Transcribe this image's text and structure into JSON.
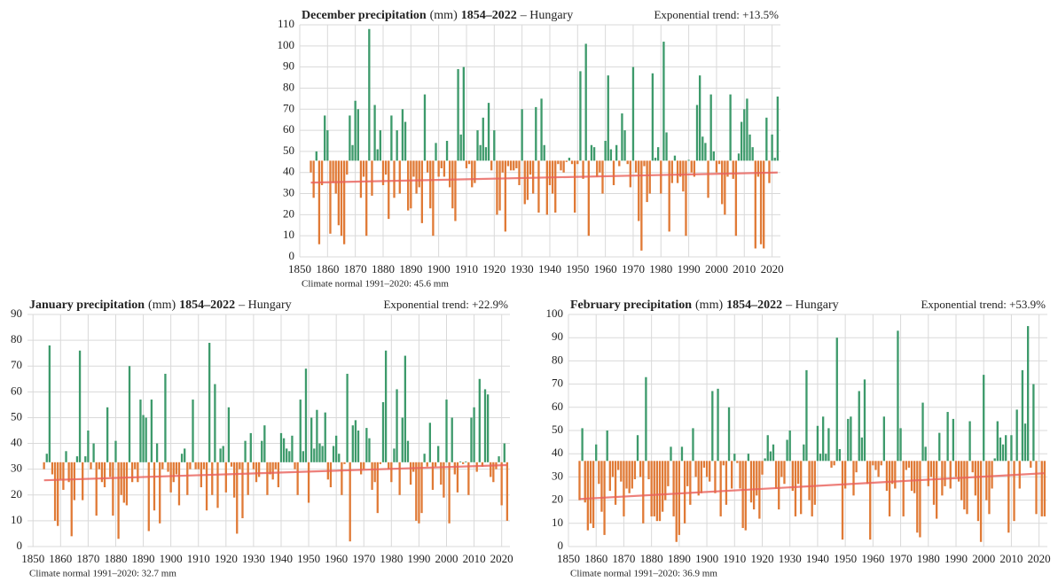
{
  "chart_data": [
    {
      "type": "bar",
      "title": [
        "December precipitation",
        "(mm)",
        "1854–2022",
        "– Hungary"
      ],
      "trend_label": "Exponential trend: +13.5%",
      "baseline": 45.6,
      "baseline_label": "Climate normal 1991–2020: 45.6 mm",
      "color_above": "#3d9a6b",
      "color_below": "#e07a36",
      "trend": {
        "x": [
          1854,
          2022
        ],
        "values": [
          35.2,
          40
        ],
        "color": "#e8605a"
      },
      "xlim": [
        1850,
        2023
      ],
      "ylim": [
        0,
        110
      ],
      "xticks": [
        1850,
        1860,
        1870,
        1880,
        1890,
        1900,
        1910,
        1920,
        1930,
        1940,
        1950,
        1960,
        1970,
        1980,
        1990,
        2000,
        2010,
        2020
      ],
      "yticks": [
        0,
        10,
        20,
        30,
        40,
        50,
        60,
        70,
        80,
        90,
        100,
        110
      ],
      "grid": true,
      "x": [
        1854,
        1855,
        1856,
        1857,
        1858,
        1859,
        1860,
        1861,
        1862,
        1863,
        1864,
        1865,
        1866,
        1867,
        1868,
        1869,
        1870,
        1871,
        1872,
        1873,
        1874,
        1875,
        1876,
        1877,
        1878,
        1879,
        1880,
        1881,
        1882,
        1883,
        1884,
        1885,
        1886,
        1887,
        1888,
        1889,
        1890,
        1891,
        1892,
        1893,
        1894,
        1895,
        1896,
        1897,
        1898,
        1899,
        1900,
        1901,
        1902,
        1903,
        1904,
        1905,
        1906,
        1907,
        1908,
        1909,
        1910,
        1911,
        1912,
        1913,
        1914,
        1915,
        1916,
        1917,
        1918,
        1919,
        1920,
        1921,
        1922,
        1923,
        1924,
        1925,
        1926,
        1927,
        1928,
        1929,
        1930,
        1931,
        1932,
        1933,
        1934,
        1935,
        1936,
        1937,
        1938,
        1939,
        1940,
        1941,
        1942,
        1943,
        1944,
        1945,
        1946,
        1947,
        1948,
        1949,
        1950,
        1951,
        1952,
        1953,
        1954,
        1955,
        1956,
        1957,
        1958,
        1959,
        1960,
        1961,
        1962,
        1963,
        1964,
        1965,
        1966,
        1967,
        1968,
        1969,
        1970,
        1971,
        1972,
        1973,
        1974,
        1975,
        1976,
        1977,
        1978,
        1979,
        1980,
        1981,
        1982,
        1983,
        1984,
        1985,
        1986,
        1987,
        1988,
        1989,
        1990,
        1991,
        1992,
        1993,
        1994,
        1995,
        1996,
        1997,
        1998,
        1999,
        2000,
        2001,
        2002,
        2003,
        2004,
        2005,
        2006,
        2007,
        2008,
        2009,
        2010,
        2011,
        2012,
        2013,
        2014,
        2015,
        2016,
        2017,
        2018,
        2019,
        2020,
        2021,
        2022
      ],
      "values": [
        40,
        28,
        50,
        6,
        34,
        67,
        60,
        11,
        35,
        30,
        15,
        10,
        6,
        39,
        67,
        53,
        74,
        70,
        28,
        38,
        10,
        108,
        29,
        72,
        51,
        60,
        34,
        39,
        18,
        67,
        28,
        60,
        30,
        70,
        64,
        22,
        23,
        38,
        30,
        33,
        16,
        77,
        40,
        23,
        10,
        54,
        38,
        42,
        38,
        55,
        33,
        23,
        17,
        89,
        58,
        90,
        42,
        44,
        33,
        35,
        60,
        53,
        66,
        52,
        73,
        41,
        60,
        20,
        22,
        40,
        12,
        43,
        41,
        41,
        42,
        34,
        70,
        25,
        27,
        39,
        30,
        71,
        21,
        75,
        53,
        20,
        34,
        30,
        21,
        44,
        41,
        40,
        45,
        47,
        44,
        21,
        44,
        88,
        37,
        101,
        10,
        53,
        52,
        38,
        40,
        30,
        55,
        86,
        51,
        34,
        53,
        43,
        68,
        60,
        44,
        33,
        90,
        40,
        17,
        3,
        43,
        26,
        30,
        87,
        47,
        52,
        30,
        102,
        59,
        12,
        35,
        48,
        35,
        38,
        31,
        10,
        46,
        40,
        38,
        72,
        86,
        57,
        54,
        28,
        77,
        50,
        40,
        44,
        25,
        20,
        38,
        77,
        37,
        10,
        49,
        64,
        70,
        75,
        58,
        52,
        4,
        38,
        6,
        4,
        66,
        35,
        58,
        47,
        76
      ]
    },
    {
      "type": "bar",
      "title": [
        "January precipitation",
        "(mm)",
        "1854–2022",
        "– Hungary"
      ],
      "trend_label": "Exponential trend: +22.9%",
      "baseline": 32.7,
      "baseline_label": "Climate normal 1991–2020: 32.7 mm",
      "color_above": "#3d9a6b",
      "color_below": "#e07a36",
      "trend": {
        "x": [
          1854,
          2022
        ],
        "values": [
          25.7,
          31.6
        ],
        "color": "#e8605a"
      },
      "xlim": [
        1848,
        2023
      ],
      "ylim": [
        0,
        90
      ],
      "xticks": [
        1850,
        1860,
        1870,
        1880,
        1890,
        1900,
        1910,
        1920,
        1930,
        1940,
        1950,
        1960,
        1970,
        1980,
        1990,
        2000,
        2010,
        2020
      ],
      "yticks": [
        0,
        10,
        20,
        30,
        40,
        50,
        60,
        70,
        80,
        90
      ],
      "grid": true,
      "x": [
        1854,
        1855,
        1856,
        1857,
        1858,
        1859,
        1860,
        1861,
        1862,
        1863,
        1864,
        1865,
        1866,
        1867,
        1868,
        1869,
        1870,
        1871,
        1872,
        1873,
        1874,
        1875,
        1876,
        1877,
        1878,
        1879,
        1880,
        1881,
        1882,
        1883,
        1884,
        1885,
        1886,
        1887,
        1888,
        1889,
        1890,
        1891,
        1892,
        1893,
        1894,
        1895,
        1896,
        1897,
        1898,
        1899,
        1900,
        1901,
        1902,
        1903,
        1904,
        1905,
        1906,
        1907,
        1908,
        1909,
        1910,
        1911,
        1912,
        1913,
        1914,
        1915,
        1916,
        1917,
        1918,
        1919,
        1920,
        1921,
        1922,
        1923,
        1924,
        1925,
        1926,
        1927,
        1928,
        1929,
        1930,
        1931,
        1932,
        1933,
        1934,
        1935,
        1936,
        1937,
        1938,
        1939,
        1940,
        1941,
        1942,
        1943,
        1944,
        1945,
        1946,
        1947,
        1948,
        1949,
        1950,
        1951,
        1952,
        1953,
        1954,
        1955,
        1956,
        1957,
        1958,
        1959,
        1960,
        1961,
        1962,
        1963,
        1964,
        1965,
        1966,
        1967,
        1968,
        1969,
        1970,
        1971,
        1972,
        1973,
        1974,
        1975,
        1976,
        1977,
        1978,
        1979,
        1980,
        1981,
        1982,
        1983,
        1984,
        1985,
        1986,
        1987,
        1988,
        1989,
        1990,
        1991,
        1992,
        1993,
        1994,
        1995,
        1996,
        1997,
        1998,
        1999,
        2000,
        2001,
        2002,
        2003,
        2004,
        2005,
        2006,
        2007,
        2008,
        2009,
        2010,
        2011,
        2012,
        2013,
        2014,
        2015,
        2016,
        2017,
        2018,
        2019,
        2020,
        2021,
        2022
      ],
      "values": [
        30,
        36,
        78,
        28,
        10,
        8,
        26,
        22,
        37,
        25,
        4,
        18,
        35,
        76,
        18,
        35,
        45,
        30,
        40,
        12,
        30,
        25,
        23,
        54,
        27,
        12,
        41,
        3,
        20,
        17,
        16,
        70,
        25,
        30,
        25,
        57,
        51,
        50,
        6,
        57,
        14,
        40,
        9,
        30,
        67,
        29,
        21,
        25,
        28,
        16,
        36,
        38,
        20,
        30,
        57,
        30,
        30,
        23,
        30,
        14,
        79,
        20,
        63,
        15,
        38,
        39,
        21,
        54,
        31,
        19,
        5,
        30,
        11,
        41,
        20,
        44,
        30,
        25,
        27,
        41,
        47,
        20,
        28,
        26,
        30,
        23,
        44,
        42,
        38,
        37,
        43,
        30,
        20,
        57,
        37,
        69,
        17,
        50,
        38,
        53,
        40,
        39,
        52,
        26,
        23,
        39,
        43,
        36,
        20,
        32,
        67,
        2,
        47,
        49,
        45,
        28,
        30,
        46,
        42,
        22,
        25,
        13,
        32,
        56,
        76,
        30,
        25,
        38,
        61,
        20,
        50,
        74,
        41,
        24,
        29,
        10,
        9,
        13,
        36,
        31,
        48,
        22,
        31,
        39,
        24,
        19,
        57,
        9,
        50,
        28,
        21,
        33,
        32,
        33,
        20,
        50,
        54,
        29,
        65,
        31,
        61,
        59,
        27,
        25,
        30,
        35,
        16,
        40,
        10
      ]
    },
    {
      "type": "bar",
      "title": [
        "February precipitation",
        "(mm)",
        "1854–2022",
        "– Hungary"
      ],
      "trend_label": "Exponential trend: +53.9%",
      "baseline": 36.9,
      "baseline_label": "Climate normal 1991–2020: 36.9 mm",
      "color_above": "#3d9a6b",
      "color_below": "#e07a36",
      "trend": {
        "x": [
          1854,
          2022
        ],
        "values": [
          20.5,
          31.6
        ],
        "color": "#e8605a"
      },
      "xlim": [
        1850,
        2023
      ],
      "ylim": [
        0,
        100
      ],
      "xticks": [
        1850,
        1860,
        1870,
        1880,
        1890,
        1900,
        1910,
        1920,
        1930,
        1940,
        1950,
        1960,
        1970,
        1980,
        1990,
        2000,
        2010,
        2020
      ],
      "yticks": [
        0,
        10,
        20,
        30,
        40,
        50,
        60,
        70,
        80,
        90,
        100
      ],
      "grid": true,
      "x": [
        1854,
        1855,
        1856,
        1857,
        1858,
        1859,
        1860,
        1861,
        1862,
        1863,
        1864,
        1865,
        1866,
        1867,
        1868,
        1869,
        1870,
        1871,
        1872,
        1873,
        1874,
        1875,
        1876,
        1877,
        1878,
        1879,
        1880,
        1881,
        1882,
        1883,
        1884,
        1885,
        1886,
        1887,
        1888,
        1889,
        1890,
        1891,
        1892,
        1893,
        1894,
        1895,
        1896,
        1897,
        1898,
        1899,
        1900,
        1901,
        1902,
        1903,
        1904,
        1905,
        1906,
        1907,
        1908,
        1909,
        1910,
        1911,
        1912,
        1913,
        1914,
        1915,
        1916,
        1917,
        1918,
        1919,
        1920,
        1921,
        1922,
        1923,
        1924,
        1925,
        1926,
        1927,
        1928,
        1929,
        1930,
        1931,
        1932,
        1933,
        1934,
        1935,
        1936,
        1937,
        1938,
        1939,
        1940,
        1941,
        1942,
        1943,
        1944,
        1945,
        1946,
        1947,
        1948,
        1949,
        1950,
        1951,
        1952,
        1953,
        1954,
        1955,
        1956,
        1957,
        1958,
        1959,
        1960,
        1961,
        1962,
        1963,
        1964,
        1965,
        1966,
        1967,
        1968,
        1969,
        1970,
        1971,
        1972,
        1973,
        1974,
        1975,
        1976,
        1977,
        1978,
        1979,
        1980,
        1981,
        1982,
        1983,
        1984,
        1985,
        1986,
        1987,
        1988,
        1989,
        1990,
        1991,
        1992,
        1993,
        1994,
        1995,
        1996,
        1997,
        1998,
        1999,
        2000,
        2001,
        2002,
        2003,
        2004,
        2005,
        2006,
        2007,
        2008,
        2009,
        2010,
        2011,
        2012,
        2013,
        2014,
        2015,
        2016,
        2017,
        2018,
        2019,
        2020,
        2021,
        2022
      ],
      "values": [
        20,
        51,
        19,
        7,
        10,
        8,
        44,
        27,
        15,
        5,
        50,
        24,
        30,
        18,
        33,
        28,
        13,
        25,
        23,
        25,
        29,
        48,
        30,
        10,
        73,
        29,
        13,
        13,
        11,
        11,
        15,
        20,
        26,
        43,
        13,
        2,
        5,
        43,
        10,
        26,
        18,
        51,
        30,
        22,
        23,
        34,
        30,
        28,
        67,
        23,
        68,
        13,
        35,
        18,
        60,
        25,
        40,
        36,
        25,
        8,
        7,
        40,
        19,
        16,
        22,
        12,
        31,
        38,
        48,
        41,
        44,
        25,
        16,
        30,
        27,
        46,
        50,
        24,
        13,
        27,
        14,
        44,
        76,
        20,
        13,
        18,
        52,
        40,
        56,
        40,
        51,
        34,
        35,
        90,
        42,
        3,
        25,
        55,
        56,
        22,
        32,
        67,
        47,
        72,
        27,
        3,
        35,
        33,
        30,
        35,
        56,
        24,
        13,
        27,
        25,
        93,
        51,
        13,
        33,
        34,
        24,
        23,
        6,
        4,
        62,
        43,
        26,
        30,
        18,
        12,
        49,
        22,
        26,
        58,
        25,
        55,
        30,
        28,
        20,
        16,
        14,
        54,
        32,
        22,
        11,
        2,
        74,
        20,
        14,
        25,
        38,
        54,
        47,
        44,
        48,
        6,
        48,
        11,
        59,
        25,
        76,
        53,
        95,
        34,
        70,
        14,
        37,
        13,
        13
      ]
    }
  ]
}
